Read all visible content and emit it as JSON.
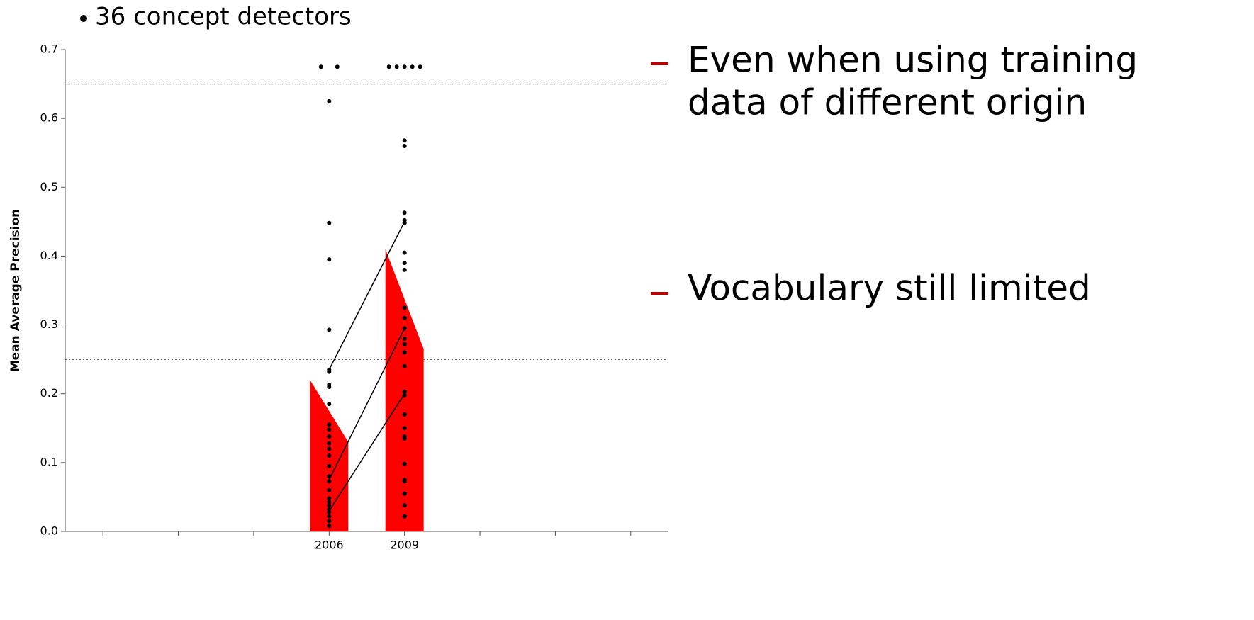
{
  "bullet": "36 concept detectors",
  "notes": [
    {
      "lines": [
        "Even when using training",
        "data of different origin"
      ]
    },
    {
      "lines": [
        "Vocabulary still limited"
      ]
    }
  ],
  "chart_data": {
    "type": "strip",
    "ylabel": "Mean Average Precision",
    "categories": [
      null,
      null,
      null,
      "2006",
      "2009",
      null,
      null,
      null
    ],
    "ylim": [
      0,
      0.7
    ],
    "yticks": [
      {
        "value": 0,
        "label": "0.0"
      },
      0.1,
      0.2,
      0.3,
      0.4,
      0.5,
      0.6,
      0.7
    ],
    "bar_color": "#ff0000",
    "bar_left": [
      null,
      null,
      null,
      0.22,
      0.41,
      null,
      null,
      null
    ],
    "bar_right": [
      null,
      null,
      null,
      0.13,
      0.265,
      null,
      null,
      null
    ],
    "point_color": "#000000",
    "points": [
      null,
      null,
      null,
      [
        0.675,
        0.675,
        0.625,
        0.448,
        0.395,
        0.293,
        0.235,
        0.232,
        0.213,
        0.21,
        0.185,
        0.155,
        0.148,
        0.138,
        0.128,
        0.12,
        0.11,
        0.095,
        0.08,
        0.073,
        0.06,
        0.048,
        0.043,
        0.038,
        0.032,
        0.028,
        0.022,
        0.015,
        0.008
      ],
      [
        0.675,
        0.675,
        0.675,
        0.675,
        0.675,
        0.568,
        0.56,
        0.463,
        0.452,
        0.448,
        0.405,
        0.39,
        0.38,
        0.325,
        0.31,
        0.295,
        0.28,
        0.272,
        0.26,
        0.24,
        0.203,
        0.198,
        0.17,
        0.15,
        0.138,
        0.135,
        0.098,
        0.075,
        0.073,
        0.055,
        0.038,
        0.022
      ],
      null,
      null,
      null
    ],
    "links": [
      {
        "from": 0.235,
        "to": 0.45
      },
      {
        "from": 0.075,
        "to": 0.295
      },
      {
        "from": 0.03,
        "to": 0.2
      }
    ],
    "hlines": [
      {
        "value": 0.65,
        "style": "dashed"
      },
      {
        "value": 0.25,
        "style": "dotted"
      }
    ]
  }
}
